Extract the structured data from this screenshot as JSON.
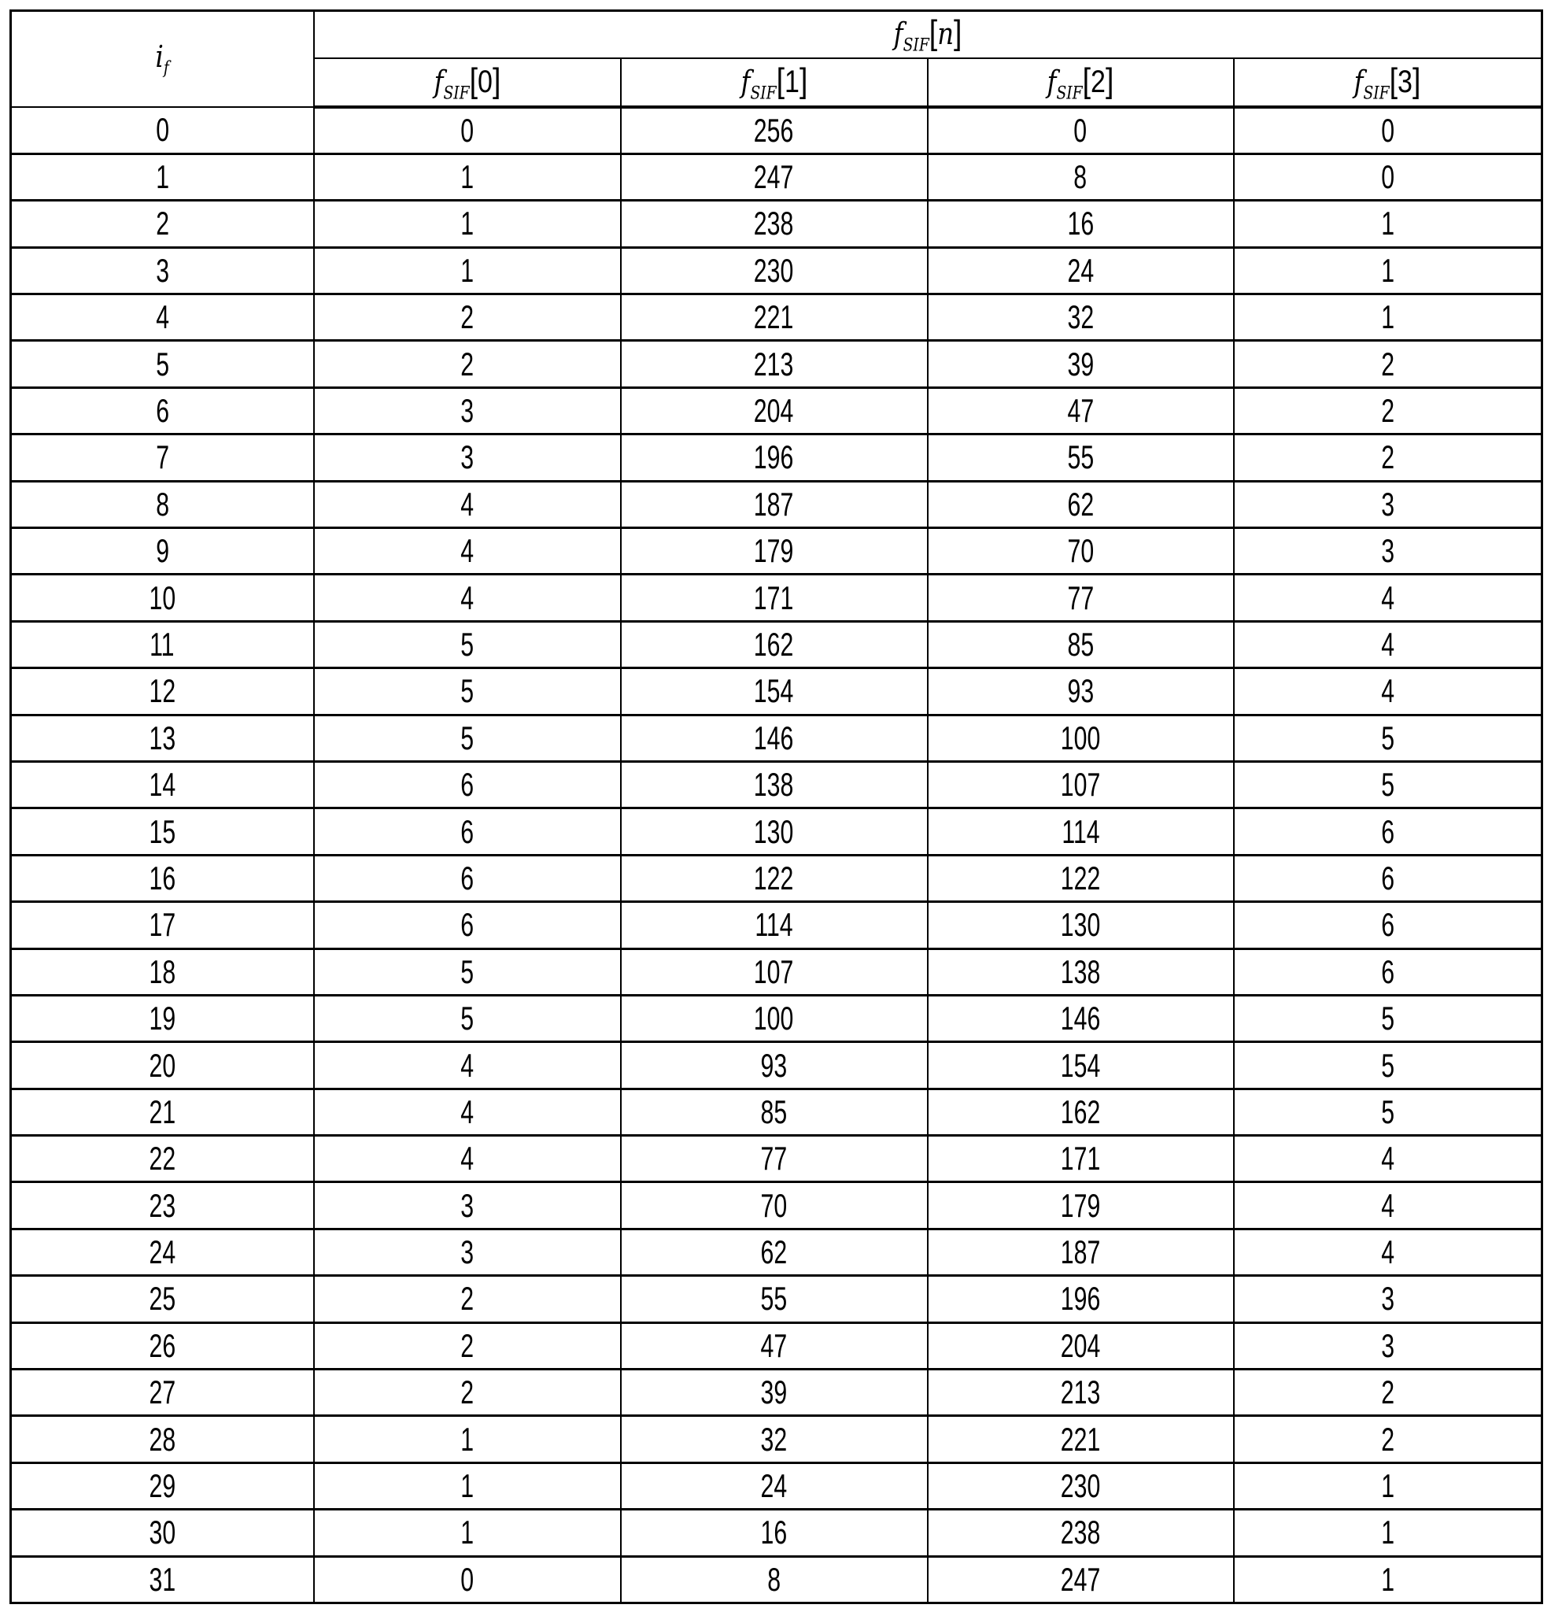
{
  "table": {
    "row_header": {
      "base": "i",
      "sub": "f"
    },
    "group_header": {
      "base": "f",
      "sub": "SIF",
      "index": "n"
    },
    "columns": [
      {
        "base": "f",
        "sub": "SIF",
        "index": "0"
      },
      {
        "base": "f",
        "sub": "SIF",
        "index": "1"
      },
      {
        "base": "f",
        "sub": "SIF",
        "index": "2"
      },
      {
        "base": "f",
        "sub": "SIF",
        "index": "3"
      }
    ],
    "rows": [
      [
        "0",
        "0",
        "256",
        "0",
        "0"
      ],
      [
        "1",
        "1",
        "247",
        "8",
        "0"
      ],
      [
        "2",
        "1",
        "238",
        "16",
        "1"
      ],
      [
        "3",
        "1",
        "230",
        "24",
        "1"
      ],
      [
        "4",
        "2",
        "221",
        "32",
        "1"
      ],
      [
        "5",
        "2",
        "213",
        "39",
        "2"
      ],
      [
        "6",
        "3",
        "204",
        "47",
        "2"
      ],
      [
        "7",
        "3",
        "196",
        "55",
        "2"
      ],
      [
        "8",
        "4",
        "187",
        "62",
        "3"
      ],
      [
        "9",
        "4",
        "179",
        "70",
        "3"
      ],
      [
        "10",
        "4",
        "171",
        "77",
        "4"
      ],
      [
        "11",
        "5",
        "162",
        "85",
        "4"
      ],
      [
        "12",
        "5",
        "154",
        "93",
        "4"
      ],
      [
        "13",
        "5",
        "146",
        "100",
        "5"
      ],
      [
        "14",
        "6",
        "138",
        "107",
        "5"
      ],
      [
        "15",
        "6",
        "130",
        "114",
        "6"
      ],
      [
        "16",
        "6",
        "122",
        "122",
        "6"
      ],
      [
        "17",
        "6",
        "114",
        "130",
        "6"
      ],
      [
        "18",
        "5",
        "107",
        "138",
        "6"
      ],
      [
        "19",
        "5",
        "100",
        "146",
        "5"
      ],
      [
        "20",
        "4",
        "93",
        "154",
        "5"
      ],
      [
        "21",
        "4",
        "85",
        "162",
        "5"
      ],
      [
        "22",
        "4",
        "77",
        "171",
        "4"
      ],
      [
        "23",
        "3",
        "70",
        "179",
        "4"
      ],
      [
        "24",
        "3",
        "62",
        "187",
        "4"
      ],
      [
        "25",
        "2",
        "55",
        "196",
        "3"
      ],
      [
        "26",
        "2",
        "47",
        "204",
        "3"
      ],
      [
        "27",
        "2",
        "39",
        "213",
        "2"
      ],
      [
        "28",
        "1",
        "32",
        "221",
        "2"
      ],
      [
        "29",
        "1",
        "24",
        "230",
        "1"
      ],
      [
        "30",
        "1",
        "16",
        "238",
        "1"
      ],
      [
        "31",
        "0",
        "8",
        "247",
        "1"
      ]
    ]
  }
}
